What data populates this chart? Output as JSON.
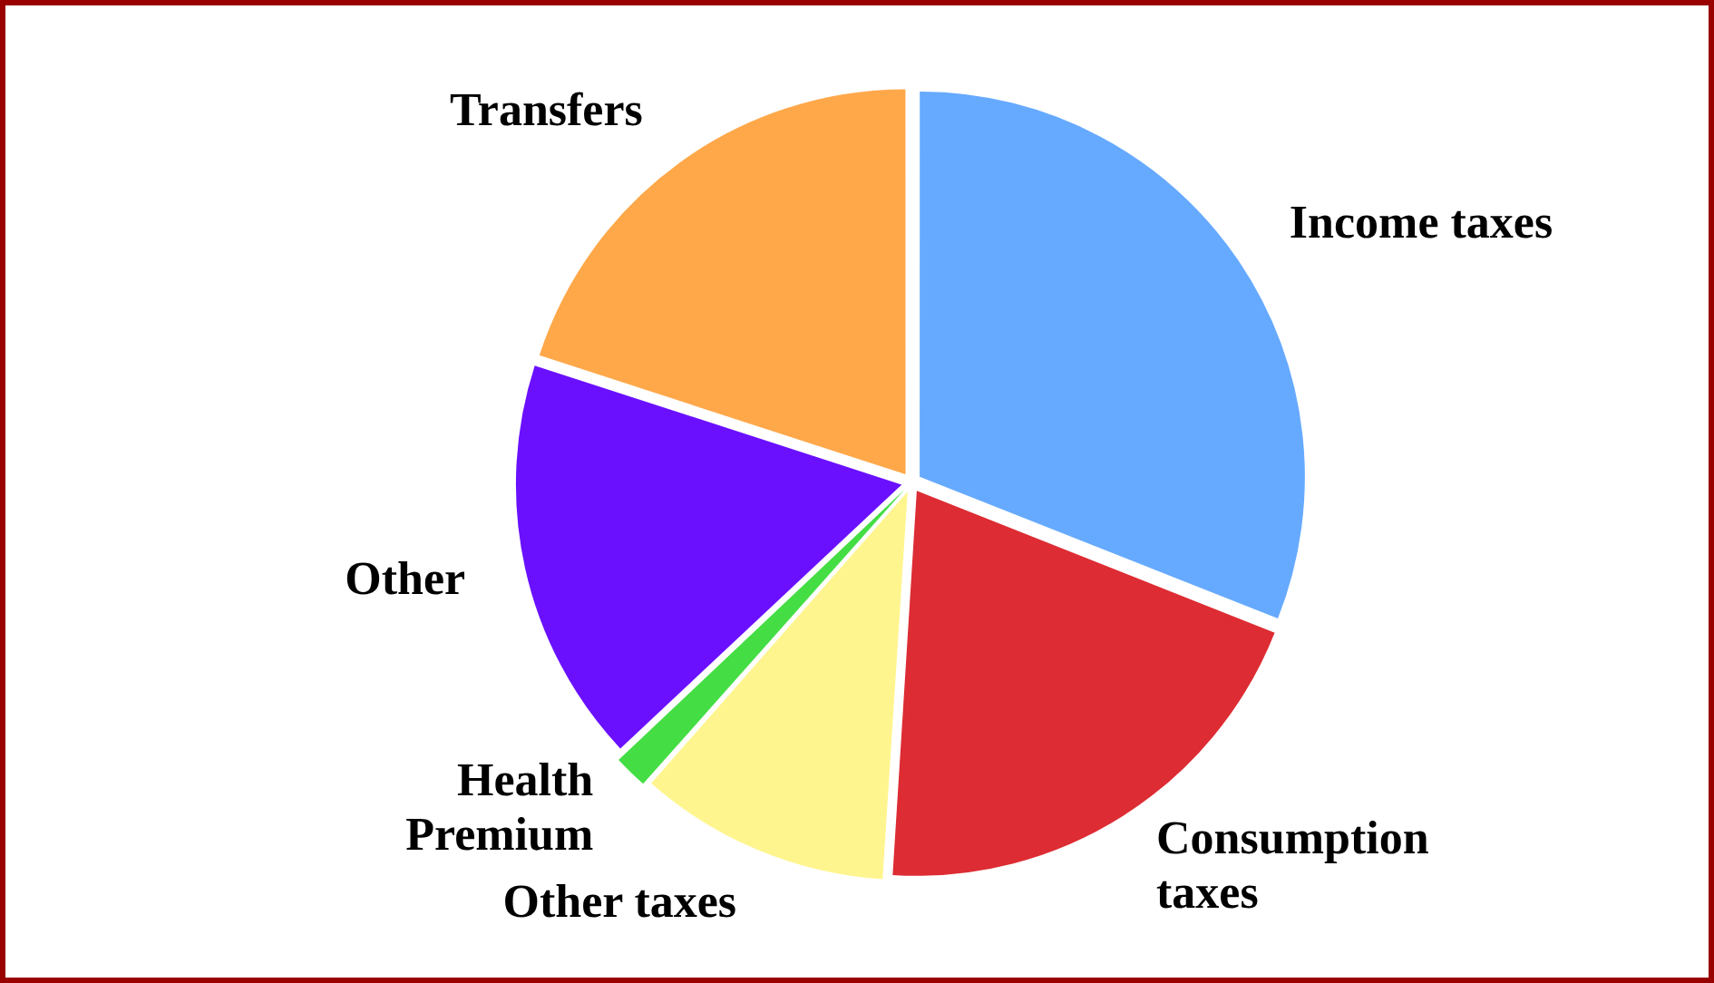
{
  "chart_data": {
    "type": "pie",
    "categories": [
      "Income taxes",
      "Consumption taxes",
      "Other taxes",
      "Health Premium",
      "Other",
      "Transfers"
    ],
    "values": [
      31,
      20,
      10.5,
      1.5,
      17,
      20
    ],
    "colors": [
      "#66aaff",
      "#dd2c33",
      "#fff58f",
      "#44dd44",
      "#6a10ff",
      "#ffa84a"
    ],
    "legend": false
  }
}
